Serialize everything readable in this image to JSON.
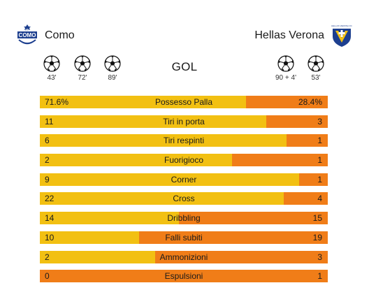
{
  "colors": {
    "home_bar": "#f2c012",
    "away_bar": "#f07d18",
    "text": "#1a1a1a"
  },
  "home_team": {
    "name": "Como",
    "crest_icon": "como-crest-icon",
    "crest_text": "COMO",
    "crest_small_text": "1907",
    "goals": [
      {
        "minute": "43'"
      },
      {
        "minute": "72'"
      },
      {
        "minute": "89'"
      }
    ]
  },
  "away_team": {
    "name": "Hellas Verona",
    "crest_icon": "hellas-verona-crest-icon",
    "crest_small_text": "HELLAS VERONA FC",
    "goals": [
      {
        "minute": "90 + 4'"
      },
      {
        "minute": "53'"
      }
    ]
  },
  "goals_label": "GOL",
  "stats": [
    {
      "label": "Possesso Palla",
      "home": "71.6%",
      "away": "28.4%",
      "home_share": 0.716
    },
    {
      "label": "Tiri in porta",
      "home": "11",
      "away": "3",
      "home_share": 0.786
    },
    {
      "label": "Tiri respinti",
      "home": "6",
      "away": "1",
      "home_share": 0.857
    },
    {
      "label": "Fuorigioco",
      "home": "2",
      "away": "1",
      "home_share": 0.667
    },
    {
      "label": "Corner",
      "home": "9",
      "away": "1",
      "home_share": 0.9
    },
    {
      "label": "Cross",
      "home": "22",
      "away": "4",
      "home_share": 0.846
    },
    {
      "label": "Dribbling",
      "home": "14",
      "away": "15",
      "home_share": 0.483
    },
    {
      "label": "Falli subiti",
      "home": "10",
      "away": "19",
      "home_share": 0.345
    },
    {
      "label": "Ammonizioni",
      "home": "2",
      "away": "3",
      "home_share": 0.4
    },
    {
      "label": "Espulsioni",
      "home": "0",
      "away": "1",
      "home_share": 0.0
    }
  ]
}
